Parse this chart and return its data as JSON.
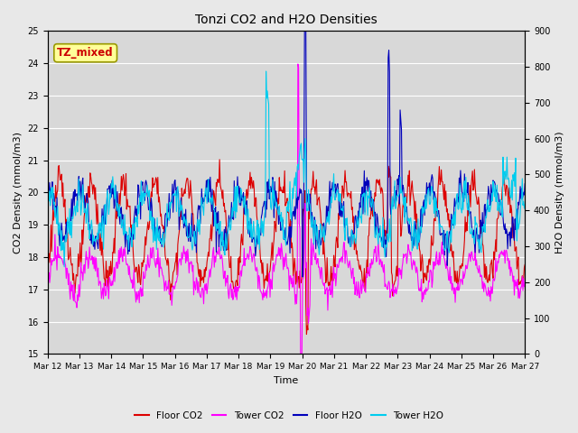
{
  "title": "Tonzi CO2 and H2O Densities",
  "xlabel": "Time",
  "ylabel_left": "CO2 Density (mmol/m3)",
  "ylabel_right": "H2O Density (mmol/m3)",
  "ylim_left": [
    15.0,
    25.0
  ],
  "ylim_right": [
    0,
    900
  ],
  "yticks_left": [
    15.0,
    16.0,
    17.0,
    18.0,
    19.0,
    20.0,
    21.0,
    22.0,
    23.0,
    24.0,
    25.0
  ],
  "yticks_right": [
    0,
    100,
    200,
    300,
    400,
    500,
    600,
    700,
    800,
    900
  ],
  "xtick_labels": [
    "Mar 12",
    "Mar 13",
    "Mar 14",
    "Mar 15",
    "Mar 16",
    "Mar 17",
    "Mar 18",
    "Mar 19",
    "Mar 20",
    "Mar 21",
    "Mar 22",
    "Mar 23",
    "Mar 24",
    "Mar 25",
    "Mar 26",
    "Mar 27"
  ],
  "annotation_text": "TZ_mixed",
  "annotation_color": "#cc0000",
  "annotation_bg": "#ffff99",
  "annotation_border": "#999900",
  "colors": {
    "floor_co2": "#dd0000",
    "tower_co2": "#ff00ff",
    "floor_h2o": "#0000bb",
    "tower_h2o": "#00ccee"
  },
  "legend_labels": [
    "Floor CO2",
    "Tower CO2",
    "Floor H2O",
    "Tower H2O"
  ],
  "bg_color": "#e8e8e8",
  "plot_bg_color": "#d8d8d8",
  "grid_color": "#ffffff",
  "linewidth": 0.8,
  "n_days": 15,
  "n_per_day": 48
}
